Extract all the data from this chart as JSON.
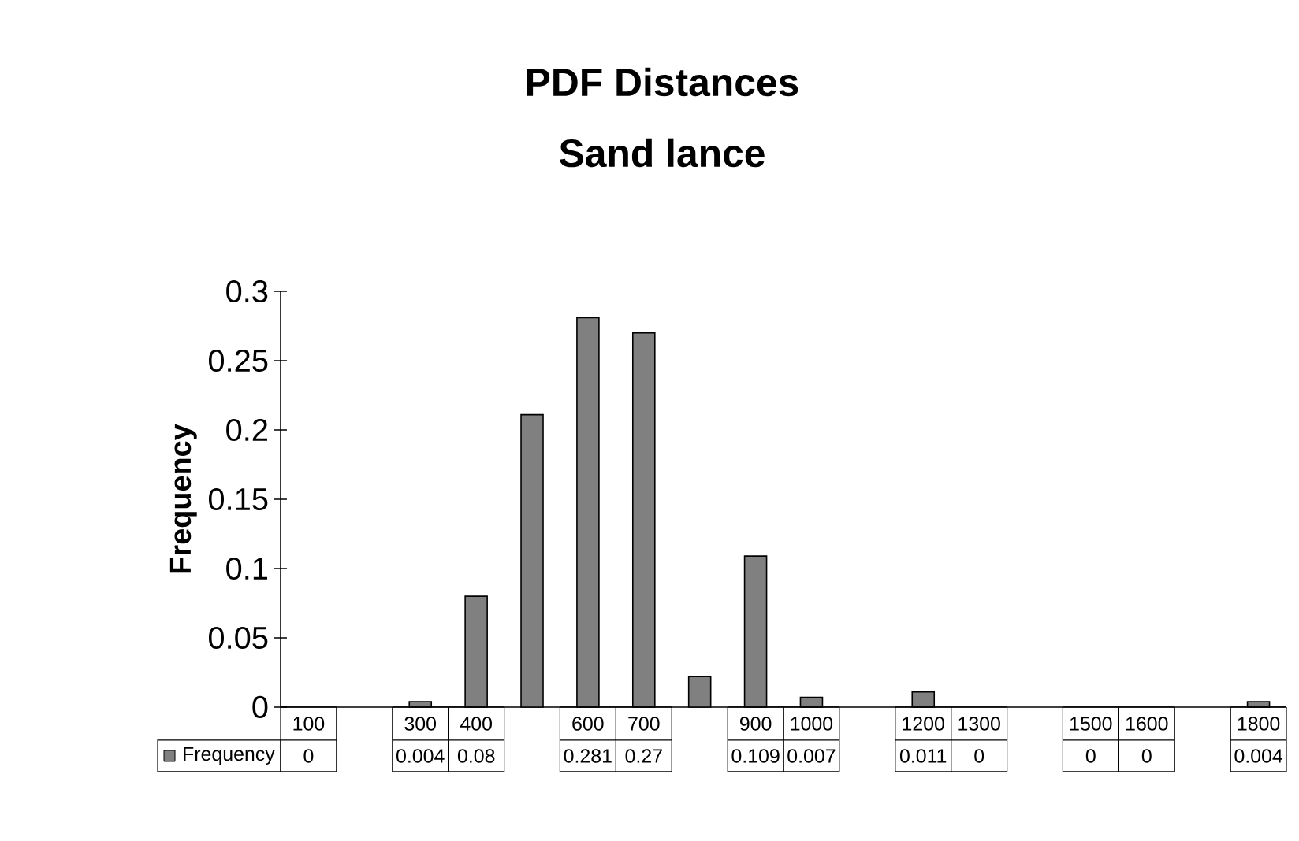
{
  "chart_data": {
    "type": "bar",
    "title": "PDF Distances",
    "subtitle": "Sand lance",
    "ylabel": "Frequency",
    "categories": [
      "100",
      null,
      "300",
      "400",
      null,
      "600",
      "700",
      null,
      "900",
      "1000",
      null,
      "1200",
      "1300",
      null,
      "1500",
      "1600",
      null,
      "1800"
    ],
    "series": [
      {
        "name": "Frequency",
        "color": "#808080",
        "values": [
          0,
          0,
          0.004,
          0.08,
          0.211,
          0.281,
          0.27,
          0.022,
          0.109,
          0.007,
          0,
          0.011,
          0,
          0,
          0,
          0,
          0,
          0.004
        ],
        "value_labels": [
          "0",
          null,
          "0.004",
          "0.08",
          null,
          "0.281",
          "0.27",
          null,
          "0.109",
          "0.007",
          null,
          "0.011",
          "0",
          null,
          "0",
          "0",
          null,
          "0.004"
        ]
      }
    ],
    "ylim": [
      0,
      0.3
    ],
    "yticks": [
      0,
      0.05,
      0.1,
      0.15,
      0.2,
      0.25,
      0.3
    ],
    "legend": "bottom",
    "grid": false
  }
}
